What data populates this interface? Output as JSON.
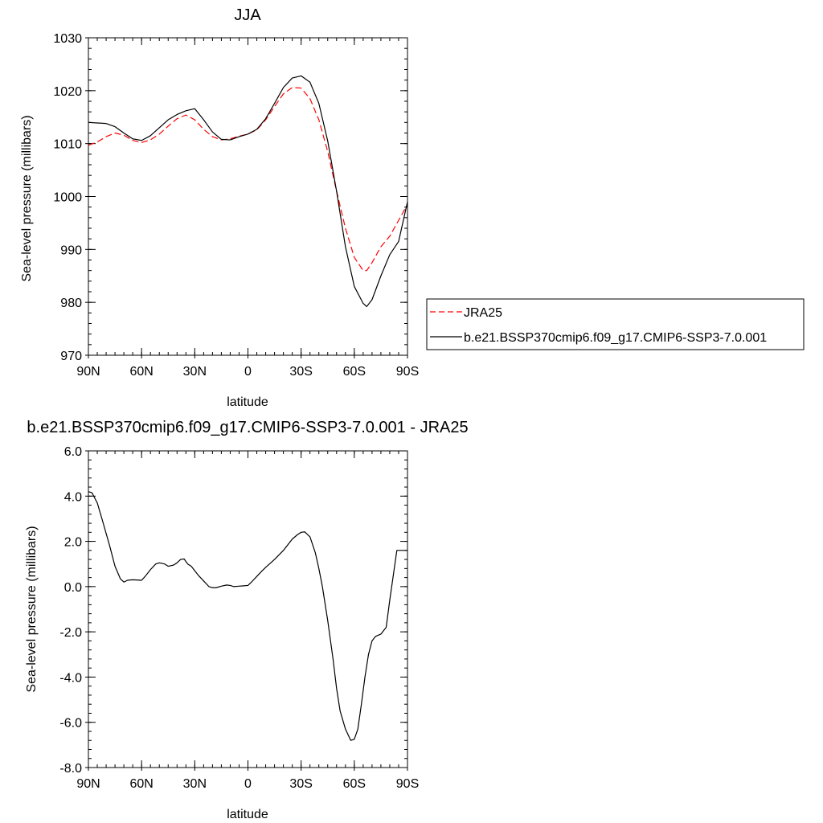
{
  "chart_data": [
    {
      "type": "line",
      "title": "JJA",
      "xlabel": "latitude",
      "ylabel": "Sea-level pressure (millibars)",
      "xlim": [
        90,
        -90
      ],
      "ylim": [
        970,
        1030
      ],
      "x_ticks": [
        90,
        60,
        30,
        0,
        -30,
        -60,
        -90
      ],
      "x_tick_labels": [
        "90N",
        "60N",
        "30N",
        "0",
        "30S",
        "60S",
        "90S"
      ],
      "y_ticks": [
        970,
        980,
        990,
        1000,
        1010,
        1020,
        1030
      ],
      "y_tick_labels": [
        "970",
        "980",
        "990",
        "1000",
        "1010",
        "1020",
        "1030"
      ],
      "grid": false,
      "legend": {
        "placement": "right",
        "entries": [
          "JRA25",
          "b.e21.BSSP370cmip6.f09_g17.CMIP6-SSP3-7.0.001"
        ]
      },
      "series": [
        {
          "name": "JRA25",
          "color": "#ff0000",
          "dash": "dashed",
          "x": [
            90,
            85,
            80,
            75,
            70,
            65,
            60,
            55,
            50,
            45,
            40,
            35,
            30,
            25,
            20,
            15,
            10,
            5,
            0,
            -5,
            -10,
            -15,
            -20,
            -25,
            -30,
            -35,
            -40,
            -45,
            -50,
            -55,
            -60,
            -65,
            -67,
            -70,
            -75,
            -80,
            -85,
            -90
          ],
          "values": [
            1009.7,
            1010.3,
            1011.3,
            1012.0,
            1011.6,
            1010.6,
            1010.2,
            1010.7,
            1011.8,
            1013.3,
            1014.7,
            1015.4,
            1014.5,
            1012.7,
            1011.3,
            1010.7,
            1010.9,
            1011.4,
            1011.8,
            1012.6,
            1014.5,
            1017.0,
            1019.4,
            1020.6,
            1020.5,
            1018.5,
            1014.5,
            1008.5,
            1001.0,
            994.0,
            988.5,
            986.0,
            986.0,
            987.5,
            990.5,
            992.5,
            995.5,
            998.5
          ]
        },
        {
          "name": "b.e21.BSSP370cmip6.f09_g17.CMIP6-SSP3-7.0.001",
          "color": "#000000",
          "dash": "solid",
          "x": [
            90,
            85,
            80,
            75,
            70,
            65,
            60,
            55,
            50,
            45,
            40,
            35,
            30,
            25,
            20,
            15,
            10,
            5,
            0,
            -5,
            -10,
            -15,
            -20,
            -25,
            -30,
            -35,
            -40,
            -45,
            -50,
            -55,
            -60,
            -65,
            -67,
            -70,
            -75,
            -80,
            -85,
            -90
          ],
          "values": [
            1014.0,
            1013.9,
            1013.8,
            1013.2,
            1012.0,
            1010.9,
            1010.6,
            1011.5,
            1013.0,
            1014.5,
            1015.5,
            1016.2,
            1016.6,
            1014.5,
            1012.2,
            1010.8,
            1010.7,
            1011.3,
            1011.8,
            1012.7,
            1014.7,
            1017.6,
            1020.6,
            1022.4,
            1022.8,
            1021.6,
            1017.6,
            1010.5,
            1001.0,
            990.5,
            983.0,
            979.8,
            979.2,
            980.5,
            985.0,
            989.0,
            991.5,
            999.0
          ]
        }
      ]
    },
    {
      "type": "line",
      "title": "b.e21.BSSP370cmip6.f09_g17.CMIP6-SSP3-7.0.001 - JRA25",
      "xlabel": "latitude",
      "ylabel": "Sea-level pressure (millibars)",
      "xlim": [
        90,
        -90
      ],
      "ylim": [
        -8.0,
        6.0
      ],
      "x_ticks": [
        90,
        60,
        30,
        0,
        -30,
        -60,
        -90
      ],
      "x_tick_labels": [
        "90N",
        "60N",
        "30N",
        "0",
        "30S",
        "60S",
        "90S"
      ],
      "y_ticks": [
        -8,
        -6,
        -4,
        -2,
        0,
        2,
        4,
        6
      ],
      "y_tick_labels": [
        "-8.0",
        "-6.0",
        "-4.0",
        "-2.0",
        "0.0",
        "2.0",
        "4.0",
        "6.0"
      ],
      "grid": false,
      "series": [
        {
          "color": "#000000",
          "dash": "solid",
          "x": [
            90,
            88,
            85,
            82,
            78,
            75,
            72,
            70,
            68,
            65,
            60,
            58,
            55,
            52,
            50,
            47,
            45,
            42,
            40,
            38,
            36,
            34,
            32,
            30,
            28,
            25,
            22,
            20,
            18,
            15,
            12,
            10,
            8,
            5,
            3,
            0,
            -2,
            -5,
            -8,
            -10,
            -15,
            -20,
            -25,
            -28,
            -30,
            -32,
            -35,
            -38,
            -40,
            -42,
            -45,
            -48,
            -50,
            -52,
            -55,
            -58,
            -60,
            -62,
            -64,
            -66,
            -68,
            -70,
            -72,
            -75,
            -78,
            -80,
            -82,
            -84,
            -86,
            -88,
            -90
          ],
          "values": [
            4.2,
            4.15,
            3.7,
            2.9,
            1.8,
            0.9,
            0.35,
            0.2,
            0.28,
            0.3,
            0.28,
            0.45,
            0.75,
            1.0,
            1.05,
            1.0,
            0.9,
            0.95,
            1.05,
            1.2,
            1.22,
            1.0,
            0.9,
            0.7,
            0.5,
            0.25,
            0.0,
            -0.05,
            -0.05,
            0.02,
            0.07,
            0.05,
            0.0,
            0.02,
            0.03,
            0.05,
            0.2,
            0.45,
            0.7,
            0.85,
            1.2,
            1.6,
            2.1,
            2.3,
            2.4,
            2.42,
            2.2,
            1.5,
            0.8,
            0.0,
            -1.5,
            -3.2,
            -4.5,
            -5.5,
            -6.3,
            -6.8,
            -6.75,
            -6.3,
            -5.2,
            -4.0,
            -3.0,
            -2.4,
            -2.2,
            -2.1,
            -1.8,
            -0.6,
            0.5,
            1.6,
            1.6,
            1.6,
            1.6
          ]
        }
      ]
    }
  ]
}
